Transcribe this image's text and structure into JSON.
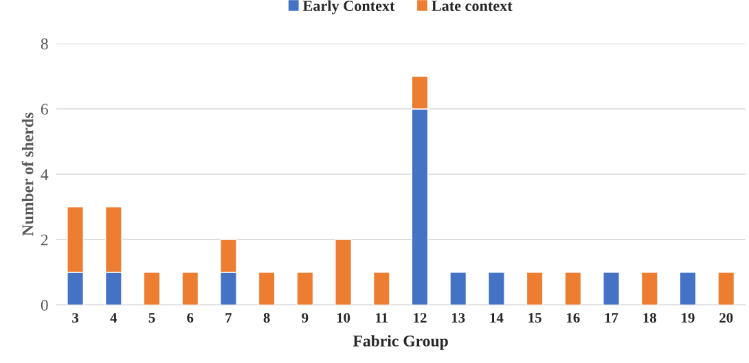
{
  "chart_data": {
    "type": "bar",
    "stacked": true,
    "xlabel": "Fabric Group",
    "ylabel": "Number of sherds",
    "categories": [
      "3",
      "4",
      "5",
      "6",
      "7",
      "8",
      "9",
      "10",
      "11",
      "12",
      "13",
      "14",
      "15",
      "16",
      "17",
      "18",
      "19",
      "20"
    ],
    "series": [
      {
        "name": "Early Context",
        "color": "#4472c4",
        "values": [
          1,
          1,
          null,
          null,
          1,
          null,
          null,
          null,
          null,
          6,
          1,
          1,
          null,
          null,
          1,
          null,
          1,
          null
        ]
      },
      {
        "name": "Late context",
        "color": "#ed7d31",
        "values": [
          2,
          2,
          1,
          1,
          1,
          1,
          1,
          2,
          1,
          1,
          null,
          null,
          1,
          1,
          null,
          1,
          null,
          1
        ]
      }
    ],
    "ylim": [
      0,
      8
    ],
    "yticks": [
      0,
      2,
      4,
      6,
      8
    ],
    "grid": "y",
    "legend": "top"
  }
}
